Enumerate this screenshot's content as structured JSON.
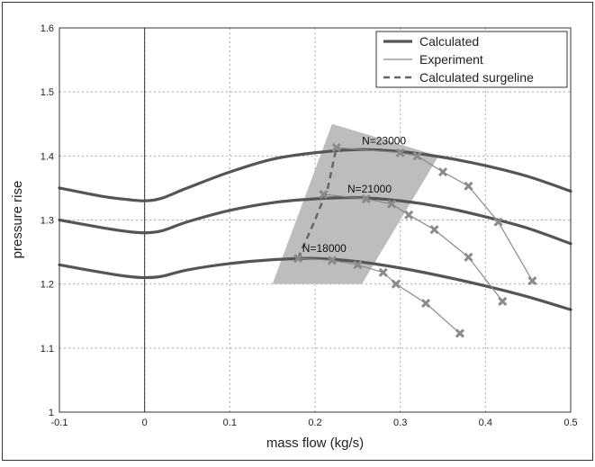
{
  "chart_data": {
    "type": "line",
    "title": "",
    "xlabel": "mass flow (kg/s)",
    "ylabel": "pressure rise",
    "xlim": [
      -0.1,
      0.5
    ],
    "ylim": [
      1.0,
      1.6
    ],
    "x_ticks": [
      -0.1,
      0,
      0.1,
      0.2,
      0.3,
      0.4,
      0.5
    ],
    "x_tick_labels": [
      "-0.1",
      "0",
      "0.1",
      "0.2",
      "0.3",
      "0.4",
      "0.5"
    ],
    "y_ticks": [
      1.0,
      1.1,
      1.2,
      1.3,
      1.4,
      1.5,
      1.6
    ],
    "y_tick_labels": [
      "1",
      "1.1",
      "1.2",
      "1.3",
      "1.4",
      "1.5",
      "1.6"
    ],
    "grid": true,
    "legend_position": "top-right",
    "legend": [
      {
        "label": "Calculated",
        "style": "solid-thick",
        "color": "#555555"
      },
      {
        "label": "Experiment",
        "style": "solid-thin",
        "color": "#888888"
      },
      {
        "label": "Calculated surgeline",
        "style": "dashed",
        "color": "#666666"
      }
    ],
    "colors": {
      "calculated": "#555555",
      "experiment": "#8a8a8a",
      "surgeline": "#666666",
      "region": "#bdbdbd",
      "grid": "#a8a8a8"
    },
    "region": {
      "points": [
        [
          0.15,
          1.2
        ],
        [
          0.22,
          1.45
        ],
        [
          0.345,
          1.4
        ],
        [
          0.255,
          1.2
        ]
      ]
    },
    "series": [
      {
        "name": "N=18000",
        "kind": "calculated",
        "x": [
          -0.1,
          -0.05,
          -0.02,
          0,
          0.02,
          0.05,
          0.1,
          0.15,
          0.2,
          0.25,
          0.3,
          0.35,
          0.4,
          0.45,
          0.5
        ],
        "y": [
          1.23,
          1.218,
          1.212,
          1.21,
          1.212,
          1.222,
          1.232,
          1.238,
          1.24,
          1.235,
          1.225,
          1.212,
          1.197,
          1.18,
          1.16
        ]
      },
      {
        "name": "N=21000",
        "kind": "calculated",
        "x": [
          -0.1,
          -0.05,
          -0.02,
          0,
          0.02,
          0.05,
          0.1,
          0.15,
          0.2,
          0.25,
          0.3,
          0.35,
          0.4,
          0.45,
          0.5
        ],
        "y": [
          1.3,
          1.288,
          1.282,
          1.28,
          1.283,
          1.297,
          1.315,
          1.327,
          1.333,
          1.335,
          1.33,
          1.32,
          1.305,
          1.287,
          1.263
        ]
      },
      {
        "name": "N=23000",
        "kind": "calculated",
        "x": [
          -0.1,
          -0.05,
          -0.02,
          0,
          0.02,
          0.05,
          0.1,
          0.15,
          0.2,
          0.25,
          0.3,
          0.35,
          0.4,
          0.45,
          0.5
        ],
        "y": [
          1.35,
          1.337,
          1.332,
          1.33,
          1.334,
          1.35,
          1.375,
          1.395,
          1.405,
          1.41,
          1.407,
          1.398,
          1.385,
          1.368,
          1.345
        ]
      },
      {
        "name": "Experiment 18000",
        "kind": "experiment",
        "x": [
          0.18,
          0.22,
          0.25,
          0.28,
          0.295,
          0.33,
          0.37
        ],
        "y": [
          1.24,
          1.237,
          1.23,
          1.218,
          1.2,
          1.17,
          1.123
        ]
      },
      {
        "name": "Experiment 21000",
        "kind": "experiment",
        "x": [
          0.21,
          0.26,
          0.29,
          0.31,
          0.34,
          0.38,
          0.42
        ],
        "y": [
          1.34,
          1.333,
          1.325,
          1.308,
          1.285,
          1.242,
          1.173
        ]
      },
      {
        "name": "Experiment 23000",
        "kind": "experiment",
        "x": [
          0.225,
          0.3,
          0.32,
          0.35,
          0.38,
          0.415,
          0.455
        ],
        "y": [
          1.413,
          1.405,
          1.4,
          1.375,
          1.353,
          1.297,
          1.205
        ]
      },
      {
        "name": "Calculated surgeline",
        "kind": "surgeline",
        "x": [
          0.18,
          0.2,
          0.215,
          0.225
        ],
        "y": [
          1.24,
          1.3,
          1.35,
          1.413
        ]
      }
    ],
    "annotations": [
      {
        "text": "N=18000",
        "x": 0.185,
        "y": 1.25
      },
      {
        "text": "N=21000",
        "x": 0.238,
        "y": 1.343
      },
      {
        "text": "N=23000",
        "x": 0.255,
        "y": 1.418
      }
    ]
  }
}
